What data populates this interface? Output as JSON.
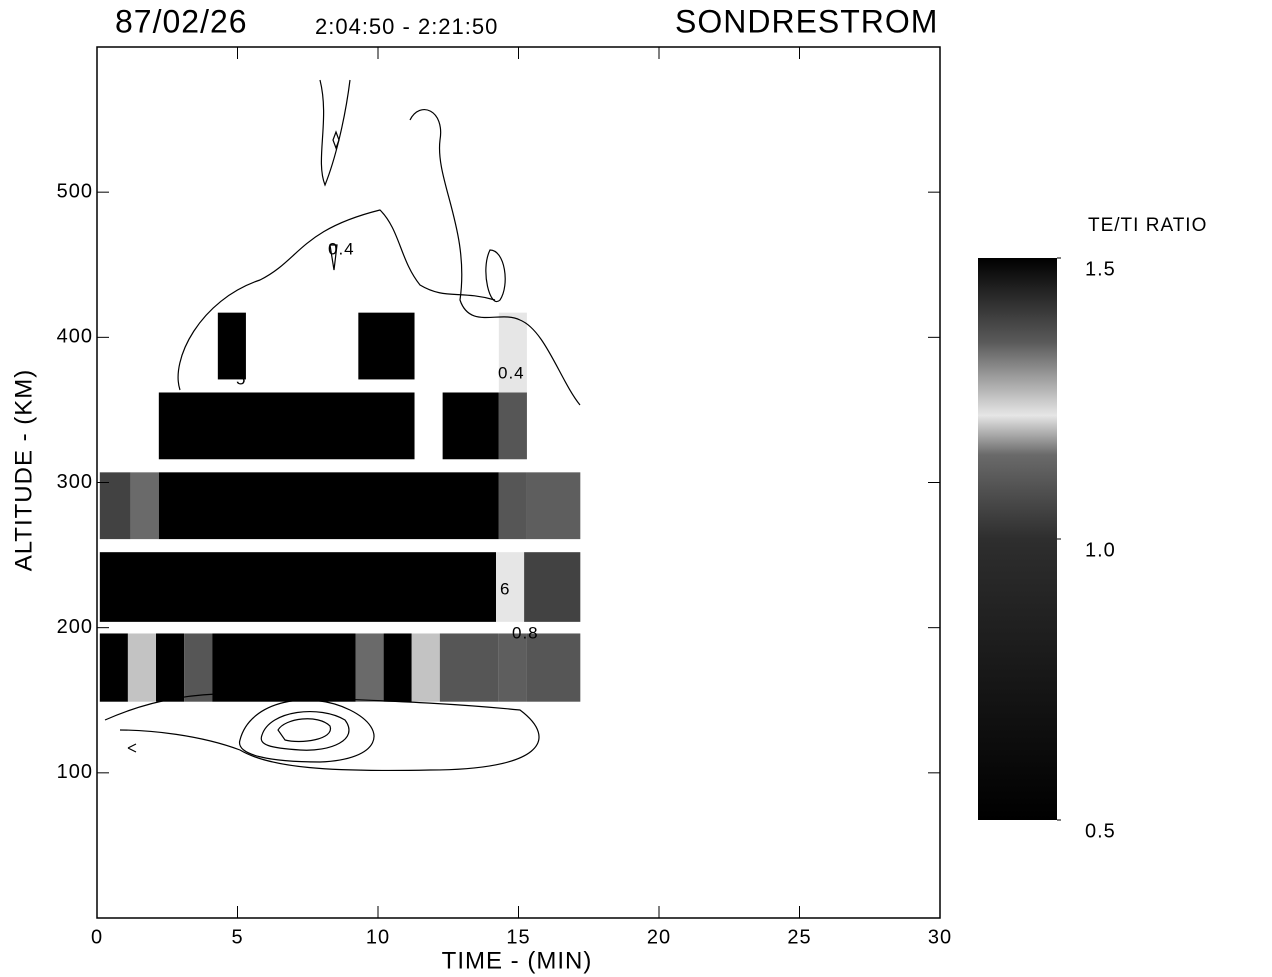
{
  "chart_data": {
    "type": "heatmap",
    "title": "87/02/26",
    "subtitle": "2:04:50 - 2:21:50",
    "station": "SONDRESTROM",
    "x_label": "TIME - (MIN)",
    "y_label": "ALTITUDE - (KM)",
    "xlim": [
      0,
      30
    ],
    "ylim": [
      0,
      600
    ],
    "xticks": [
      0,
      5,
      10,
      15,
      20,
      25,
      30
    ],
    "yticks": [
      100,
      200,
      300,
      400,
      500
    ],
    "colorbar_title": "TE/TI RATIO",
    "clim": [
      0.5,
      1.5
    ],
    "colorbar_ticks": [
      {
        "value": 1.5,
        "label": "1.5"
      },
      {
        "value": 1,
        "label": "1.0"
      },
      0.5
    ],
    "colorscale": [
      [
        0.5,
        "#000000"
      ],
      [
        1.0,
        "#2e2e2e"
      ],
      [
        1.15,
        "#6a6a6a"
      ],
      [
        1.22,
        "#e6e6e6"
      ],
      [
        1.35,
        "#5a5a5a"
      ],
      [
        1.5,
        "#000000"
      ]
    ],
    "contour_labels": [
      0.4,
      0.4,
      5,
      6,
      0.8
    ],
    "cells": [
      {
        "t": [
          4.3,
          5.3
        ],
        "alt": [
          371,
          417
        ],
        "value": 1.5
      },
      {
        "t": [
          9.3,
          11.3
        ],
        "alt": [
          371,
          417
        ],
        "value": 1.5
      },
      {
        "t": [
          14.3,
          15.3
        ],
        "alt": [
          362,
          417
        ],
        "value": 1.22
      },
      {
        "t": [
          2.2,
          11.3
        ],
        "alt": [
          316,
          362
        ],
        "value": 1.5
      },
      {
        "t": [
          12.3,
          14.3
        ],
        "alt": [
          316,
          362
        ],
        "value": 1.5
      },
      {
        "t": [
          14.3,
          15.3
        ],
        "alt": [
          316,
          362
        ],
        "value": 1.1
      },
      {
        "t": [
          0.1,
          1.2
        ],
        "alt": [
          261,
          307
        ],
        "value": 1.05
      },
      {
        "t": [
          1.2,
          2.2
        ],
        "alt": [
          261,
          307
        ],
        "value": 1.15
      },
      {
        "t": [
          2.2,
          14.3
        ],
        "alt": [
          261,
          307
        ],
        "value": 1.5
      },
      {
        "t": [
          14.3,
          15.3
        ],
        "alt": [
          261,
          307
        ],
        "value": 1.1
      },
      {
        "t": [
          15.3,
          17.2
        ],
        "alt": [
          261,
          307
        ],
        "value": 1.12
      },
      {
        "t": [
          0.1,
          14.2
        ],
        "alt": [
          204,
          252
        ],
        "value": 1.5
      },
      {
        "t": [
          14.2,
          15.2
        ],
        "alt": [
          204,
          252
        ],
        "value": 1.22
      },
      {
        "t": [
          15.2,
          17.2
        ],
        "alt": [
          204,
          252
        ],
        "value": 1.05
      },
      {
        "t": [
          0.1,
          1.1
        ],
        "alt": [
          149,
          196
        ],
        "value": 1.5
      },
      {
        "t": [
          1.1,
          2.1
        ],
        "alt": [
          149,
          196
        ],
        "value": 1.2
      },
      {
        "t": [
          2.1,
          3.1
        ],
        "alt": [
          149,
          196
        ],
        "value": 1.5
      },
      {
        "t": [
          3.1,
          4.1
        ],
        "alt": [
          149,
          196
        ],
        "value": 1.1
      },
      {
        "t": [
          4.1,
          9.2
        ],
        "alt": [
          149,
          196
        ],
        "value": 1.5
      },
      {
        "t": [
          9.2,
          10.2
        ],
        "alt": [
          149,
          196
        ],
        "value": 1.15
      },
      {
        "t": [
          10.2,
          11.2
        ],
        "alt": [
          149,
          196
        ],
        "value": 1.5
      },
      {
        "t": [
          11.2,
          12.2
        ],
        "alt": [
          149,
          196
        ],
        "value": 1.2
      },
      {
        "t": [
          12.2,
          14.3
        ],
        "alt": [
          149,
          196
        ],
        "value": 1.1
      },
      {
        "t": [
          14.3,
          15.3
        ],
        "alt": [
          149,
          196
        ],
        "value": 1.12
      },
      {
        "t": [
          15.3,
          17.2
        ],
        "alt": [
          149,
          196
        ],
        "value": 1.1
      }
    ]
  }
}
